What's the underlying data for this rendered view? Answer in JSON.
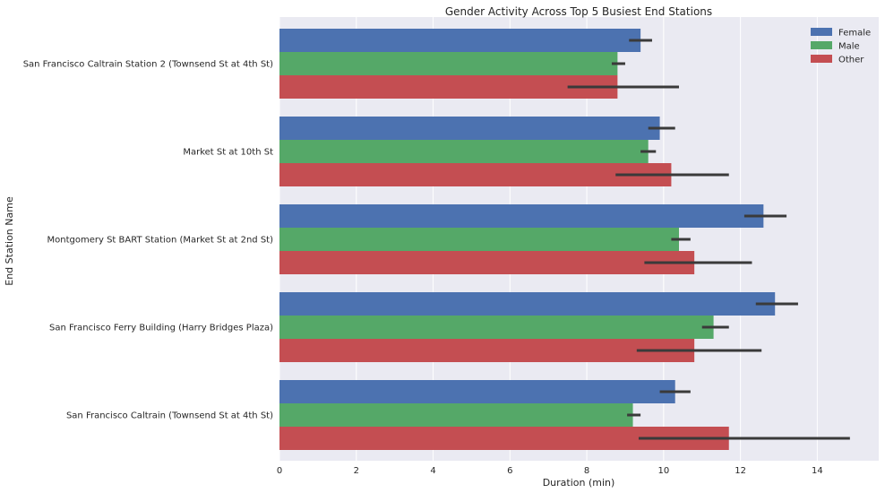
{
  "chart_data": {
    "type": "bar",
    "orientation": "horizontal",
    "title": "Gender Activity Across Top 5 Busiest End Stations",
    "xlabel": "Duration (min)",
    "ylabel": "End Station Name",
    "xlim": [
      0,
      15.6
    ],
    "xticks": [
      0,
      2,
      4,
      6,
      8,
      10,
      12,
      14
    ],
    "grid": true,
    "legend_position": "top-right",
    "categories": [
      "San Francisco Caltrain Station 2  (Townsend St at 4th St)",
      "Market St at 10th St",
      "Montgomery St BART Station (Market St at 2nd St)",
      "San Francisco Ferry Building (Harry Bridges Plaza)",
      "San Francisco Caltrain (Townsend St at 4th St)"
    ],
    "series": [
      {
        "name": "Female",
        "color": "#4c72b0",
        "values": [
          9.4,
          9.9,
          12.6,
          12.9,
          10.3
        ],
        "ci": [
          [
            9.1,
            9.7
          ],
          [
            9.6,
            10.3
          ],
          [
            12.1,
            13.2
          ],
          [
            12.4,
            13.5
          ],
          [
            9.9,
            10.7
          ]
        ]
      },
      {
        "name": "Male",
        "color": "#55a868",
        "values": [
          8.8,
          9.6,
          10.4,
          11.3,
          9.2
        ],
        "ci": [
          [
            8.65,
            9.0
          ],
          [
            9.4,
            9.8
          ],
          [
            10.2,
            10.7
          ],
          [
            11.0,
            11.7
          ],
          [
            9.05,
            9.4
          ]
        ]
      },
      {
        "name": "Other",
        "color": "#c44e52",
        "values": [
          8.8,
          10.2,
          10.8,
          10.8,
          11.7
        ],
        "ci": [
          [
            7.5,
            10.4
          ],
          [
            8.75,
            11.7
          ],
          [
            9.5,
            12.3
          ],
          [
            9.3,
            12.55
          ],
          [
            9.35,
            14.85
          ]
        ]
      }
    ]
  },
  "colors": {
    "plot_background": "#eaeaf2",
    "grid": "#ffffff",
    "error_bar": "#3a3a3a"
  }
}
